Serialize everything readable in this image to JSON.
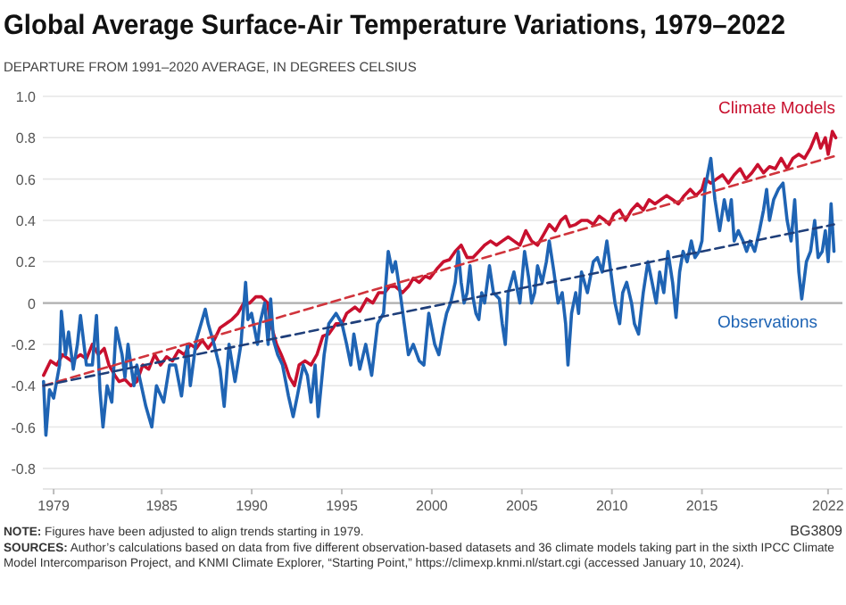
{
  "chart_data": {
    "type": "line",
    "title": "Global Average Surface-Air Temperature Variations, 1979–2022",
    "subtitle": "DEPARTURE FROM 1991–2020 AVERAGE, IN DEGREES CELSIUS",
    "xlim": [
      1978.4,
      2022.8
    ],
    "xticks": [
      1979,
      1985,
      1990,
      1995,
      2000,
      2005,
      2010,
      2015,
      2022
    ],
    "ylim": [
      -0.9,
      1.0
    ],
    "yticks": [
      -0.8,
      -0.6,
      -0.4,
      -0.2,
      0,
      0.2,
      0.4,
      0.6,
      0.8,
      {
        "value": 1.0,
        "label": "1.0"
      }
    ],
    "grid": "y",
    "marker": "none",
    "ref_lines": [
      {
        "axis": "y",
        "value": 0,
        "color": "#b0b0b0"
      }
    ],
    "series": [
      {
        "name": "Climate Models",
        "color": "#c8102e",
        "line_style": "solid",
        "x": [
          1978.44,
          1978.83,
          1979.17,
          1979.5,
          1979.99,
          1980.49,
          1980.82,
          1981.15,
          1981.48,
          1981.81,
          1982.07,
          1982.4,
          1982.63,
          1982.96,
          1983.29,
          1983.62,
          1983.95,
          1984.28,
          1984.61,
          1984.94,
          1985.27,
          1985.6,
          1985.93,
          1986.26,
          1986.59,
          1986.92,
          1987.25,
          1987.58,
          1987.91,
          1988.24,
          1988.57,
          1988.9,
          1989.23,
          1989.56,
          1989.89,
          1990.22,
          1990.55,
          1990.88,
          1991.05,
          1991.38,
          1991.64,
          1991.87,
          1992.1,
          1992.37,
          1992.63,
          1992.96,
          1993.29,
          1993.62,
          1993.95,
          1994.28,
          1994.68,
          1995.01,
          1995.27,
          1995.73,
          1996.0,
          1996.39,
          1996.72,
          1997.05,
          1997.38,
          1997.65,
          1997.98,
          1998.37,
          1998.7,
          1998.97,
          1999.3,
          1999.63,
          1999.89,
          2000.33,
          2000.65,
          2000.98,
          2001.3,
          2001.63,
          2001.96,
          2002.28,
          2002.61,
          2002.93,
          2003.26,
          2003.59,
          2003.91,
          2004.24,
          2004.56,
          2004.89,
          2005.22,
          2005.54,
          2005.87,
          2006.2,
          2006.52,
          2006.85,
          2007.17,
          2007.43,
          2007.66,
          2007.99,
          2008.31,
          2008.64,
          2008.97,
          2009.29,
          2009.62,
          2009.85,
          2010.11,
          2010.43,
          2010.76,
          2011.09,
          2011.41,
          2011.74,
          2012.06,
          2012.39,
          2012.72,
          2013.04,
          2013.37,
          2013.69,
          2014.02,
          2014.35,
          2014.67,
          2015.0,
          2015.16,
          2015.49,
          2015.81,
          2016.14,
          2016.47,
          2016.79,
          2017.12,
          2017.44,
          2017.77,
          2018.1,
          2018.42,
          2018.75,
          2019.07,
          2019.4,
          2019.73,
          2020.05,
          2020.38,
          2020.7,
          2021.03,
          2021.36,
          2021.59,
          2021.85,
          2022.01,
          2022.24,
          2022.43
        ],
        "values": [
          -0.35,
          -0.28,
          -0.3,
          -0.25,
          -0.28,
          -0.25,
          -0.27,
          -0.2,
          -0.25,
          -0.22,
          -0.3,
          -0.35,
          -0.38,
          -0.37,
          -0.4,
          -0.38,
          -0.3,
          -0.32,
          -0.25,
          -0.3,
          -0.26,
          -0.28,
          -0.23,
          -0.25,
          -0.2,
          -0.22,
          -0.18,
          -0.22,
          -0.18,
          -0.12,
          -0.1,
          -0.08,
          -0.05,
          0.0,
          0.0,
          0.03,
          0.03,
          0.0,
          -0.1,
          -0.2,
          -0.25,
          -0.3,
          -0.36,
          -0.4,
          -0.3,
          -0.28,
          -0.3,
          -0.25,
          -0.16,
          -0.15,
          -0.1,
          -0.1,
          -0.05,
          -0.02,
          -0.04,
          0.02,
          0.0,
          0.05,
          0.05,
          0.08,
          0.08,
          0.05,
          0.08,
          0.12,
          0.1,
          0.13,
          0.12,
          0.17,
          0.2,
          0.21,
          0.25,
          0.28,
          0.22,
          0.22,
          0.25,
          0.28,
          0.3,
          0.28,
          0.3,
          0.32,
          0.3,
          0.28,
          0.35,
          0.3,
          0.28,
          0.33,
          0.38,
          0.35,
          0.4,
          0.42,
          0.37,
          0.38,
          0.4,
          0.4,
          0.38,
          0.42,
          0.4,
          0.38,
          0.43,
          0.45,
          0.4,
          0.45,
          0.48,
          0.45,
          0.5,
          0.48,
          0.5,
          0.52,
          0.5,
          0.48,
          0.52,
          0.55,
          0.52,
          0.55,
          0.6,
          0.58,
          0.6,
          0.62,
          0.58,
          0.62,
          0.65,
          0.6,
          0.63,
          0.67,
          0.63,
          0.66,
          0.65,
          0.7,
          0.65,
          0.7,
          0.72,
          0.7,
          0.75,
          0.82,
          0.75,
          0.8,
          0.72,
          0.83,
          0.8
        ]
      },
      {
        "name": "Observations",
        "color": "#1f64b4",
        "line_style": "solid",
        "x": [
          1978.44,
          1978.57,
          1978.77,
          1979.0,
          1979.33,
          1979.43,
          1979.66,
          1979.83,
          1980.09,
          1980.32,
          1980.49,
          1980.82,
          1981.15,
          1981.38,
          1981.57,
          1981.74,
          1981.97,
          1982.23,
          1982.47,
          1982.8,
          1982.96,
          1983.13,
          1983.46,
          1983.62,
          1984.12,
          1984.45,
          1984.71,
          1985.11,
          1985.44,
          1985.77,
          1986.1,
          1986.43,
          1986.59,
          1986.92,
          1987.42,
          1987.58,
          1987.91,
          1988.24,
          1988.47,
          1988.74,
          1989.07,
          1989.4,
          1989.66,
          1989.79,
          1989.99,
          1990.32,
          1990.45,
          1990.72,
          1990.91,
          1991.05,
          1991.21,
          1991.44,
          1991.71,
          1992.04,
          1992.3,
          1992.53,
          1992.86,
          1993.09,
          1993.29,
          1993.52,
          1993.69,
          1994.02,
          1994.28,
          1994.68,
          1995.01,
          1995.27,
          1995.5,
          1995.67,
          1996.0,
          1996.33,
          1996.66,
          1996.99,
          1997.32,
          1997.58,
          1997.81,
          1997.98,
          1998.24,
          1998.47,
          1998.7,
          1998.97,
          1999.3,
          1999.56,
          1999.83,
          2000.16,
          2000.39,
          2000.65,
          2000.82,
          2001.04,
          2001.3,
          2001.47,
          2001.63,
          2001.79,
          2001.96,
          2002.12,
          2002.28,
          2002.45,
          2002.61,
          2002.77,
          2002.93,
          2003.2,
          2003.42,
          2003.75,
          2003.91,
          2004.08,
          2004.24,
          2004.56,
          2004.89,
          2005.15,
          2005.38,
          2005.54,
          2005.71,
          2005.87,
          2006.13,
          2006.36,
          2006.52,
          2006.78,
          2007.01,
          2007.24,
          2007.43,
          2007.56,
          2007.76,
          2007.99,
          2008.15,
          2008.31,
          2008.64,
          2008.97,
          2009.19,
          2009.46,
          2009.72,
          2009.94,
          2010.17,
          2010.43,
          2010.6,
          2010.82,
          2011.09,
          2011.25,
          2011.48,
          2011.74,
          2012.0,
          2012.23,
          2012.46,
          2012.65,
          2012.88,
          2013.11,
          2013.37,
          2013.56,
          2013.76,
          2013.95,
          2014.18,
          2014.41,
          2014.61,
          2014.84,
          2015.0,
          2015.16,
          2015.49,
          2015.72,
          2015.98,
          2016.24,
          2016.47,
          2016.63,
          2016.79,
          2017.02,
          2017.28,
          2017.48,
          2017.67,
          2017.93,
          2018.19,
          2018.42,
          2018.59,
          2018.75,
          2018.98,
          2019.24,
          2019.5,
          2019.73,
          2019.95,
          2020.15,
          2020.38,
          2020.54,
          2020.8,
          2021.03,
          2021.26,
          2021.45,
          2021.68,
          2021.85,
          2022.01,
          2022.17,
          2022.33
        ],
        "values": [
          -0.38,
          -0.64,
          -0.42,
          -0.46,
          -0.3,
          -0.04,
          -0.25,
          -0.14,
          -0.32,
          -0.2,
          -0.06,
          -0.3,
          -0.3,
          -0.06,
          -0.42,
          -0.6,
          -0.4,
          -0.48,
          -0.12,
          -0.25,
          -0.36,
          -0.2,
          -0.4,
          -0.3,
          -0.5,
          -0.6,
          -0.4,
          -0.48,
          -0.3,
          -0.3,
          -0.45,
          -0.2,
          -0.4,
          -0.18,
          -0.03,
          -0.1,
          -0.2,
          -0.32,
          -0.5,
          -0.2,
          -0.38,
          -0.2,
          0.1,
          -0.08,
          -0.05,
          -0.2,
          -0.1,
          0.0,
          -0.2,
          0.02,
          -0.18,
          -0.25,
          -0.3,
          -0.45,
          -0.55,
          -0.45,
          -0.3,
          -0.35,
          -0.48,
          -0.3,
          -0.55,
          -0.25,
          -0.1,
          -0.05,
          -0.1,
          -0.2,
          -0.3,
          -0.15,
          -0.32,
          -0.2,
          -0.35,
          -0.1,
          -0.05,
          0.25,
          0.15,
          0.2,
          0.05,
          -0.1,
          -0.25,
          -0.2,
          -0.28,
          -0.3,
          -0.05,
          -0.2,
          -0.25,
          -0.12,
          -0.05,
          0.0,
          0.1,
          0.25,
          0.1,
          0.0,
          0.05,
          0.18,
          0.03,
          -0.05,
          -0.08,
          0.05,
          0.0,
          0.18,
          0.05,
          0.02,
          -0.1,
          -0.2,
          0.05,
          0.15,
          0.0,
          0.25,
          0.12,
          0.0,
          0.05,
          0.18,
          0.1,
          0.2,
          0.3,
          0.15,
          0.0,
          0.05,
          -0.1,
          -0.3,
          -0.05,
          0.05,
          -0.05,
          0.15,
          0.05,
          0.2,
          0.22,
          0.15,
          0.3,
          0.15,
          0.0,
          -0.1,
          0.05,
          0.1,
          0.0,
          -0.1,
          -0.15,
          0.05,
          0.2,
          0.1,
          0.0,
          0.15,
          0.05,
          0.25,
          0.1,
          -0.07,
          0.15,
          0.25,
          0.2,
          0.3,
          0.22,
          0.25,
          0.3,
          0.55,
          0.7,
          0.5,
          0.35,
          0.5,
          0.4,
          0.5,
          0.3,
          0.35,
          0.3,
          0.25,
          0.3,
          0.25,
          0.35,
          0.45,
          0.55,
          0.4,
          0.5,
          0.55,
          0.58,
          0.4,
          0.3,
          0.5,
          0.15,
          0.02,
          0.2,
          0.25,
          0.4,
          0.22,
          0.25,
          0.35,
          0.2,
          0.48,
          0.25
        ]
      },
      {
        "color": "#d0343c",
        "line_style": "dashed",
        "x": [
          1978.44,
          2022.33
        ],
        "values": [
          -0.4,
          0.71
        ]
      },
      {
        "color": "#1f3f7a",
        "line_style": "dashed",
        "x": [
          1978.44,
          2022.33
        ],
        "values": [
          -0.4,
          0.38
        ]
      }
    ],
    "annotations": [
      "NOTE: Figures have been adjusted to align trends starting in 1979.",
      "SOURCES: Author’s calculations based on data from five different observation-based datasets and 36 climate models taking part in the sixth IPCC Climate Model Intercomparison Project, and KNMI Climate Explorer, “Starting Point,” https://climexp.knmi.nl/start.cgi (accessed January 10, 2024).",
      "BG3809"
    ]
  }
}
